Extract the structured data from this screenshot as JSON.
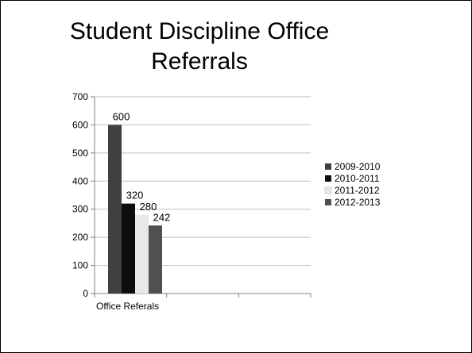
{
  "slide": {
    "title_line1": "Student Discipline Office",
    "title_line2": "Referrals"
  },
  "chart_data": {
    "type": "bar",
    "title": "Student Discipline Office Referrals",
    "categories": [
      "Office Referals"
    ],
    "series": [
      {
        "name": "2009-2010",
        "values": [
          600
        ],
        "color": "#404040"
      },
      {
        "name": "2010-2011",
        "values": [
          320
        ],
        "color": "#0d0d0d"
      },
      {
        "name": "2011-2012",
        "values": [
          280
        ],
        "color": "#e8e8e8"
      },
      {
        "name": "2012-2013",
        "values": [
          242
        ],
        "color": "#505050"
      }
    ],
    "data_labels": [
      "600",
      "320",
      "280",
      "242"
    ],
    "ylim": [
      0,
      700
    ],
    "yticks": [
      0,
      100,
      200,
      300,
      400,
      500,
      600,
      700
    ],
    "grid": true,
    "legend_position": "right"
  }
}
